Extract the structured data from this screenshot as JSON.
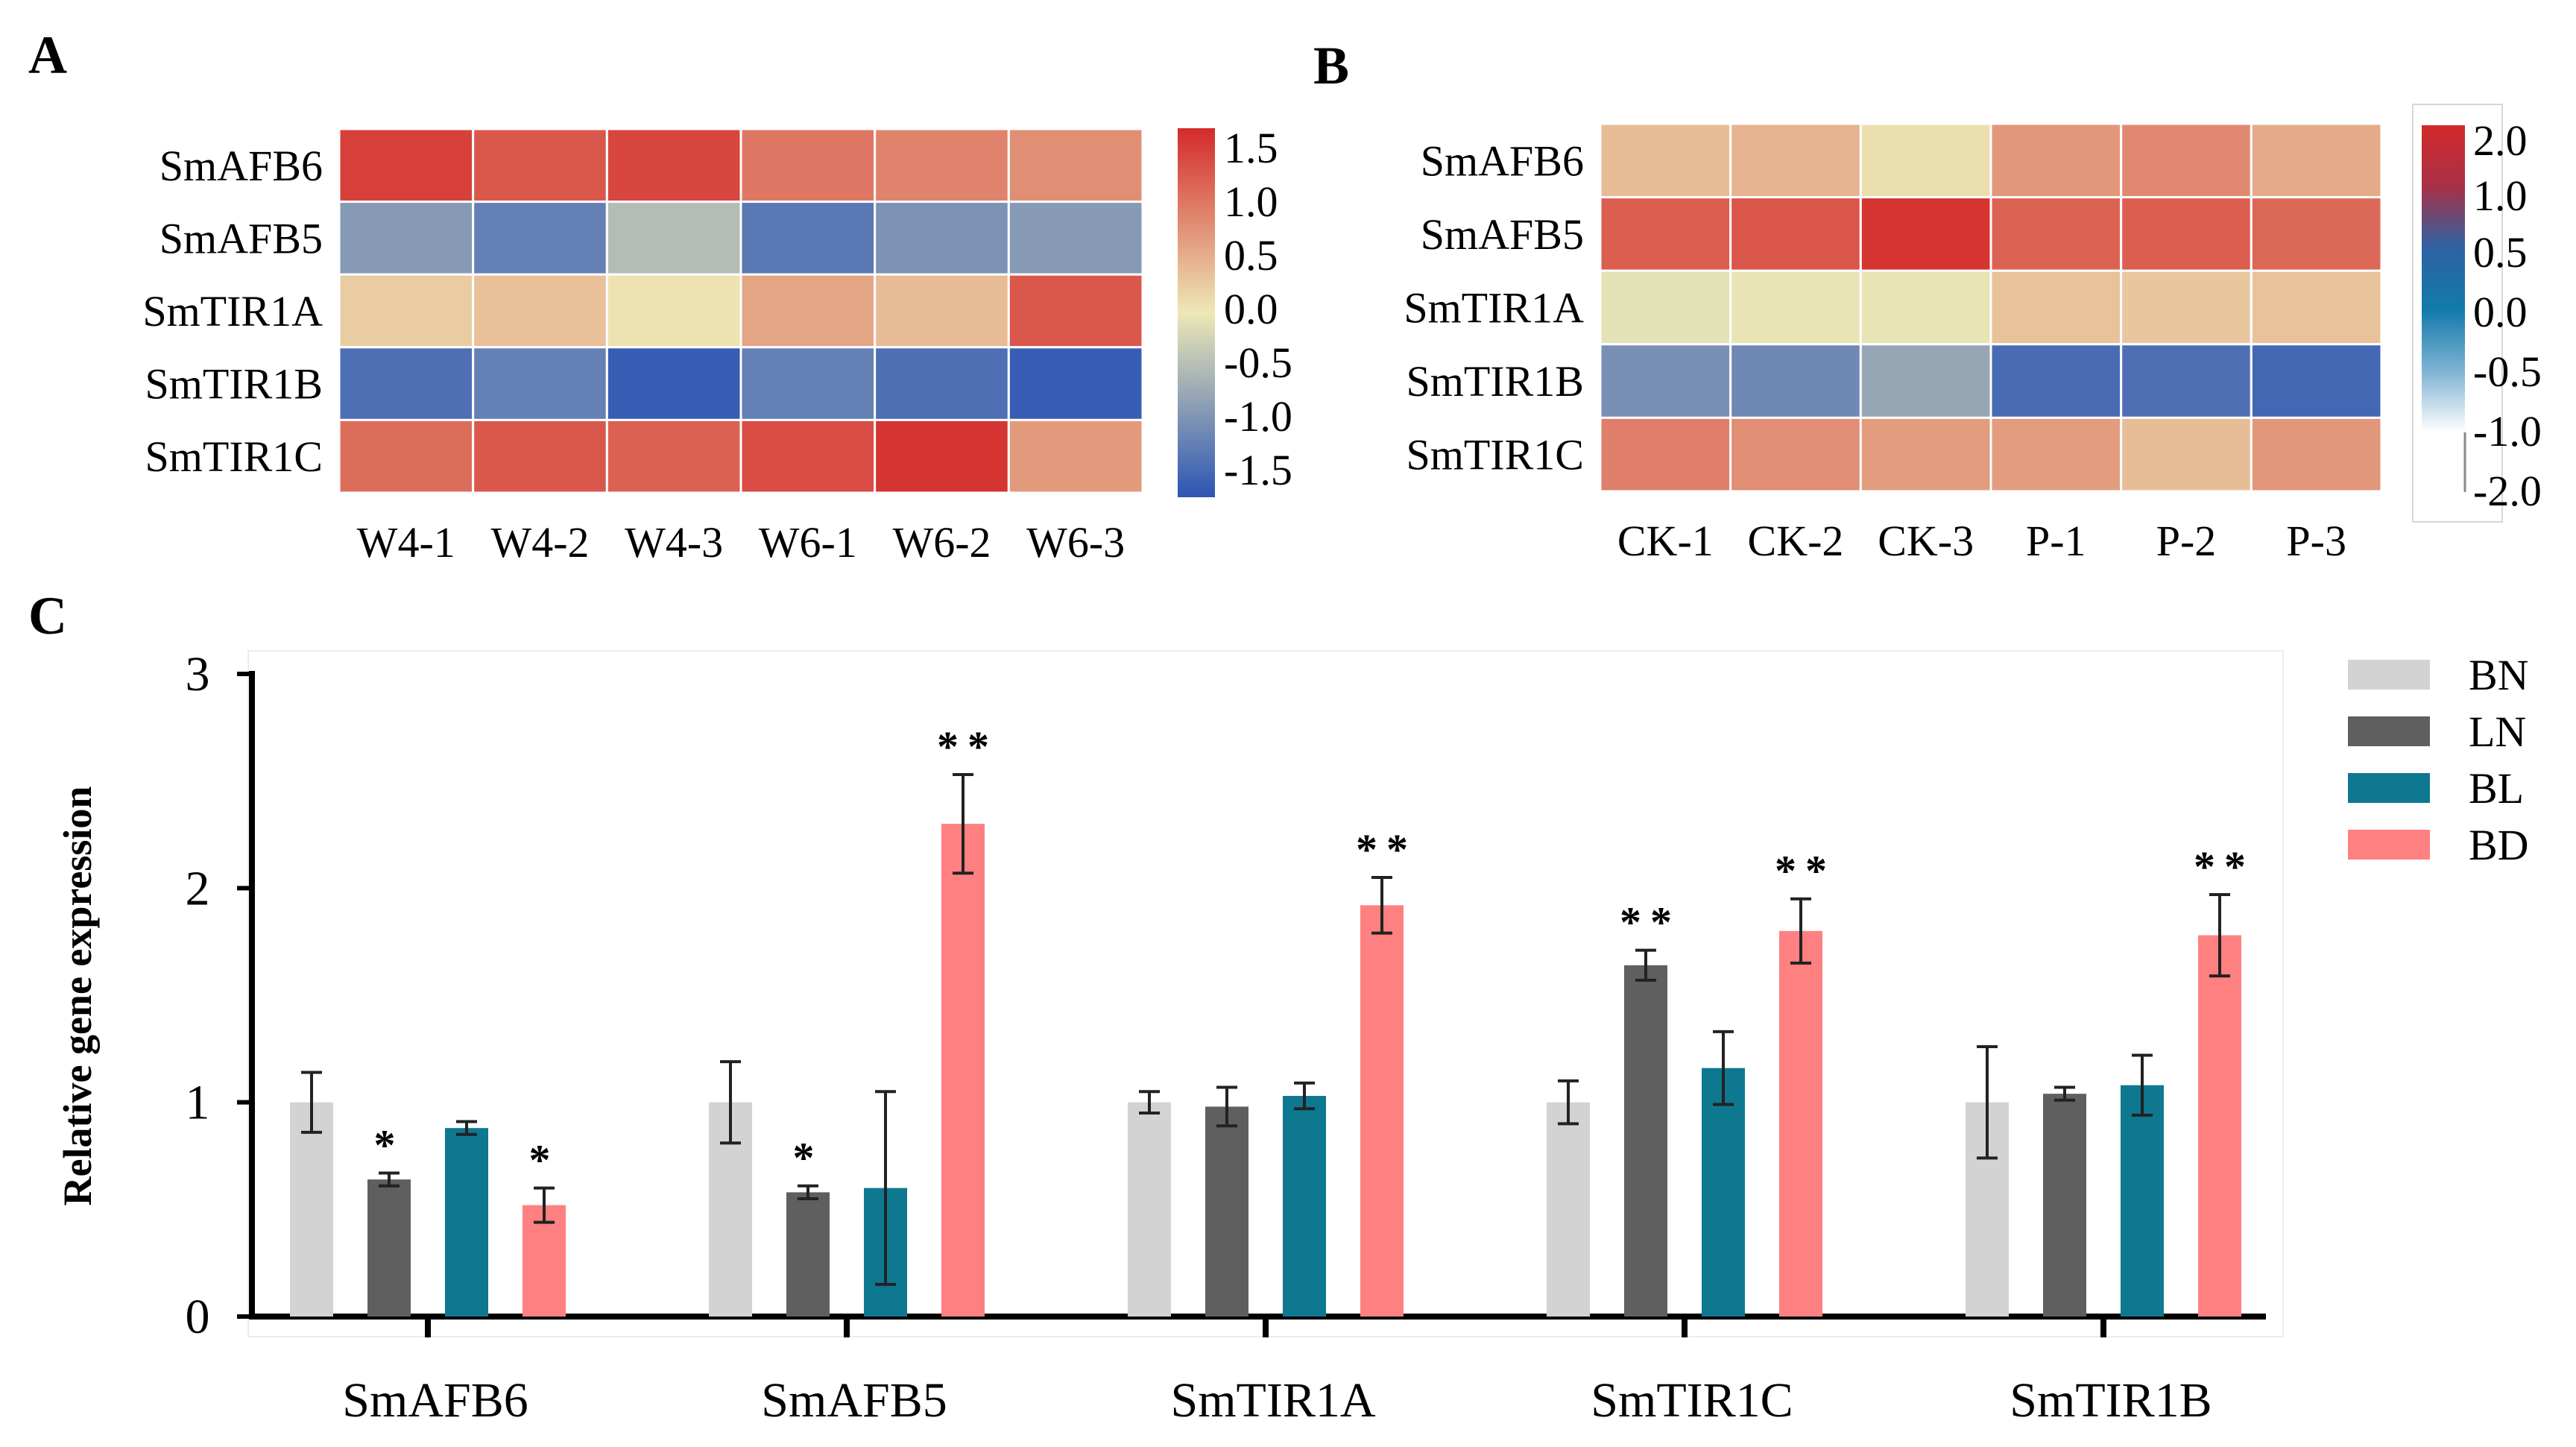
{
  "figure": {
    "panels": [
      {
        "label": "A",
        "chart_data": {
          "type": "heatmap",
          "rows": [
            "SmAFB6",
            "SmAFB5",
            "SmTIR1A",
            "SmTIR1B",
            "SmTIR1C"
          ],
          "columns": [
            "W4-1",
            "W4-2",
            "W4-3",
            "W6-1",
            "W6-2",
            "W6-3"
          ],
          "values": [
            [
              1.5,
              1.3,
              1.45,
              1.0,
              0.9,
              0.8
            ],
            [
              -0.9,
              -1.2,
              -0.5,
              -1.3,
              -1.0,
              -0.9
            ],
            [
              0.25,
              0.35,
              0.05,
              0.6,
              0.4,
              1.3
            ],
            [
              -1.4,
              -1.2,
              -1.6,
              -1.2,
              -1.4,
              -1.6
            ],
            [
              1.1,
              1.3,
              1.2,
              1.4,
              1.6,
              0.7
            ]
          ],
          "colorbar": {
            "ticks": [
              "1.5",
              "1.0",
              "0.5",
              "0.0",
              "-0.5",
              "-1.0",
              "-1.5"
            ],
            "range": [
              -1.7,
              1.7
            ]
          },
          "colors": {
            "low": "#2c55b4",
            "mid": "#ede8b6",
            "high": "#d42a2a"
          }
        }
      },
      {
        "label": "B",
        "chart_data": {
          "type": "heatmap",
          "rows": [
            "SmAFB6",
            "SmAFB5",
            "SmTIR1A",
            "SmTIR1B",
            "SmTIR1C"
          ],
          "columns": [
            "CK-1",
            "CK-2",
            "CK-3",
            "P-1",
            "P-2",
            "P-3"
          ],
          "values": [
            [
              0.45,
              0.55,
              0.1,
              0.85,
              1.0,
              0.65
            ],
            [
              1.45,
              1.55,
              1.9,
              1.4,
              1.45,
              1.35
            ],
            [
              -0.1,
              -0.05,
              -0.05,
              0.4,
              0.35,
              0.4
            ],
            [
              -1.2,
              -1.3,
              -0.9,
              -1.7,
              -1.65,
              -1.75
            ],
            [
              1.1,
              0.95,
              0.8,
              0.8,
              0.45,
              0.85
            ]
          ],
          "colorbar": {
            "ticks": [
              "2.0",
              "1.0",
              "0.5",
              "0.0",
              "-0.5",
              "-1.0",
              "-2.0"
            ],
            "range": [
              -2.0,
              2.0
            ]
          },
          "colors": {
            "low": "#2c55b4",
            "mid": "#ede8b6",
            "high": "#d42a2a"
          },
          "colorbar_colors": [
            "#d32a2a",
            "#a83048",
            "#2d63a3",
            "#127aab",
            "#7fb3d3",
            "#ffffff"
          ]
        }
      },
      {
        "label": "C",
        "chart_data": {
          "type": "bar",
          "ylabel": "Relative gene expression",
          "ylim": [
            0,
            3
          ],
          "yticks": [
            "0",
            "1",
            "2",
            "3"
          ],
          "categories": [
            "SmAFB6",
            "SmAFB5",
            "SmTIR1A",
            "SmTIR1C",
            "SmTIR1B"
          ],
          "legend_position": "top-right",
          "series": [
            {
              "name": "BN",
              "color": "#d3d3d3",
              "values": [
                1.0,
                1.0,
                1.0,
                1.0,
                1.0
              ],
              "errors": [
                0.14,
                0.19,
                0.05,
                0.1,
                0.26
              ],
              "significance": [
                "",
                "",
                "",
                "",
                ""
              ]
            },
            {
              "name": "LN",
              "color": "#5f5f5f",
              "values": [
                0.64,
                0.58,
                0.98,
                1.64,
                1.04
              ],
              "errors": [
                0.03,
                0.03,
                0.09,
                0.07,
                0.03
              ],
              "significance": [
                "*",
                "*",
                "",
                "**",
                ""
              ]
            },
            {
              "name": "BL",
              "color": "#0e7891",
              "values": [
                0.88,
                0.6,
                1.03,
                1.16,
                1.08
              ],
              "errors": [
                0.03,
                0.45,
                0.06,
                0.17,
                0.14
              ],
              "significance": [
                "",
                "",
                "",
                "",
                ""
              ]
            },
            {
              "name": "BD",
              "color": "#ff8080",
              "values": [
                0.52,
                2.3,
                1.92,
                1.8,
                1.78
              ],
              "errors": [
                0.08,
                0.23,
                0.13,
                0.15,
                0.19
              ],
              "significance": [
                "*",
                "**",
                "**",
                "**",
                "**"
              ]
            }
          ]
        }
      }
    ]
  }
}
